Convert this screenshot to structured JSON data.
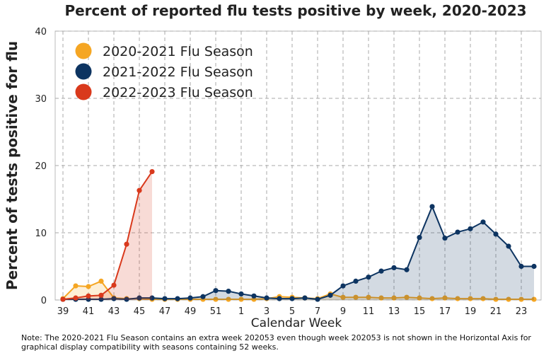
{
  "chart_data": {
    "type": "line",
    "title": "Percent of reported flu tests positive by week, 2020-2023",
    "x_label": "Calendar Week",
    "y_label": "Percent of tests positive for flu",
    "note": "Note: The 2020-2021 Flu Season contains an extra week 202053 even though week 202053 is not shown in the Horizontal Axis for graphical display compatibility with seasons containing 52 weeks.",
    "categories": [
      39,
      null,
      41,
      null,
      43,
      null,
      45,
      null,
      47,
      null,
      49,
      null,
      51,
      null,
      1,
      null,
      3,
      null,
      5,
      null,
      7,
      null,
      9,
      null,
      11,
      null,
      13,
      null,
      15,
      null,
      17,
      null,
      19,
      null,
      21,
      null,
      23,
      null
    ],
    "ylim": [
      0,
      40
    ],
    "yticks": [
      0,
      10,
      20,
      30,
      40
    ],
    "grid": true,
    "legend": "upper left",
    "series": [
      {
        "name": "2020-2021 Flu Season",
        "color": "#f5a623",
        "values": [
          0.2,
          2.1,
          2.0,
          2.8,
          0.3,
          0.2,
          0.2,
          0.1,
          0.1,
          0.1,
          0.1,
          0.1,
          0.1,
          0.1,
          0.1,
          0.1,
          0.2,
          0.5,
          0.4,
          0.3,
          0.2,
          0.9,
          0.4,
          0.4,
          0.4,
          0.3,
          0.3,
          0.4,
          0.3,
          0.2,
          0.3,
          0.2,
          0.2,
          0.2,
          0.1,
          0.1,
          0.1,
          0.1
        ]
      },
      {
        "name": "2021-2022 Flu Season",
        "color": "#0d3461",
        "values": [
          0.1,
          0.1,
          0.1,
          0.1,
          0.2,
          0.1,
          0.3,
          0.3,
          0.2,
          0.2,
          0.3,
          0.5,
          1.4,
          1.3,
          0.9,
          0.6,
          0.3,
          0.2,
          0.2,
          0.3,
          0.1,
          0.7,
          2.1,
          2.8,
          3.4,
          4.3,
          4.8,
          4.5,
          9.3,
          13.9,
          9.2,
          10.1,
          10.6,
          11.6,
          9.8,
          8.0,
          5.0,
          5.0
        ]
      },
      {
        "name": "2022-2023 Flu Season",
        "color": "#d9391c",
        "values": [
          0.1,
          0.3,
          0.6,
          0.7,
          2.2,
          8.3,
          16.3,
          19.1,
          null,
          null,
          null,
          null,
          null,
          null,
          null,
          null,
          null,
          null,
          null,
          null,
          null,
          null,
          null,
          null,
          null,
          null,
          null,
          null,
          null,
          null,
          null,
          null,
          null,
          null,
          null,
          null,
          null,
          null
        ]
      }
    ]
  }
}
